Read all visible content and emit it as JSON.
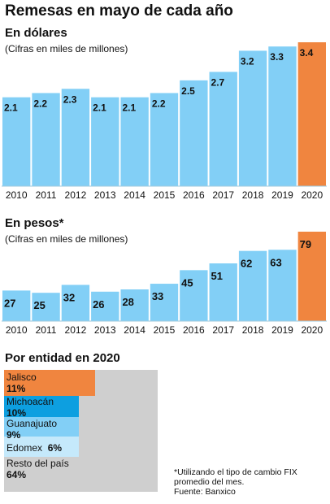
{
  "title": "Remesas en mayo de cada año",
  "chart_data": [
    {
      "type": "bar",
      "title": "En dólares",
      "subtitle": "(Cifras en miles de millones)",
      "categories": [
        "2010",
        "2011",
        "2012",
        "2013",
        "2014",
        "2015",
        "2016",
        "2017",
        "2018",
        "2019",
        "2020"
      ],
      "values": [
        2.1,
        2.2,
        2.3,
        2.1,
        2.1,
        2.2,
        2.5,
        2.7,
        3.2,
        3.3,
        3.4
      ],
      "value_labels": [
        "2.1",
        "2.2",
        "2.3",
        "2.1",
        "2.1",
        "2.2",
        "2.5",
        "2.7",
        "3.2",
        "3.3",
        "3.4"
      ],
      "ylim": [
        0,
        3.4
      ],
      "highlight_index": 10,
      "bar_color": "#82cff6",
      "highlight_color": "#f0853f",
      "grid": false
    },
    {
      "type": "bar",
      "title": "En pesos*",
      "subtitle": "(Cifras en miles de millones)",
      "categories": [
        "2010",
        "2011",
        "2012",
        "2013",
        "2014",
        "2015",
        "2016",
        "2017",
        "2018",
        "2019",
        "2020"
      ],
      "values": [
        27,
        25,
        32,
        26,
        28,
        33,
        45,
        51,
        62,
        63,
        79
      ],
      "value_labels": [
        "27",
        "25",
        "32",
        "26",
        "28",
        "33",
        "45",
        "51",
        "62",
        "63",
        "79"
      ],
      "ylim": [
        0,
        79
      ],
      "highlight_index": 10,
      "bar_color": "#82cff6",
      "highlight_color": "#f0853f",
      "grid": false
    },
    {
      "type": "area",
      "title": "Por entidad en 2020",
      "items": [
        {
          "name": "Jalisco",
          "value": 11,
          "label": "11%",
          "color": "#f0853f"
        },
        {
          "name": "Michoacán",
          "value": 10,
          "label": "10%",
          "color": "#0d9fe0"
        },
        {
          "name": "Guanajuato",
          "value": 9,
          "label": "9%",
          "color": "#82cff6"
        },
        {
          "name": "Edomex",
          "value": 6,
          "label": "6%",
          "color": "#c5e9fb"
        },
        {
          "name": "Resto del país",
          "value": 64,
          "label": "64%",
          "color": "#cfcfcf"
        }
      ]
    }
  ],
  "note": {
    "line1": "*Utilizando el tipo de cambio FIX",
    "line2": "promedio del mes.",
    "line3": "Fuente: Banxico"
  }
}
